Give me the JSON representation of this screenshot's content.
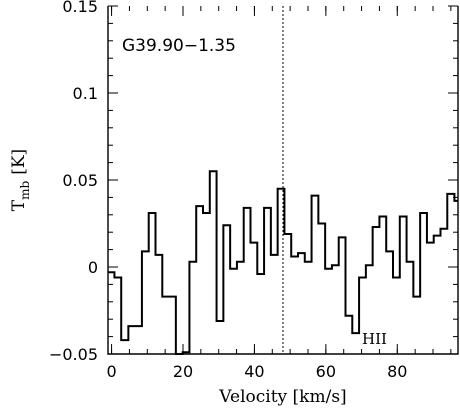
{
  "chart_data": {
    "type": "line",
    "style": "step",
    "source_label": "G39.90−1.35",
    "annotation": "HII",
    "xlabel": "Velocity [km/s]",
    "ylabel_main": "T",
    "ylabel_sub": "mb",
    "ylabel_unit": "[K]",
    "xlim": [
      -1,
      97
    ],
    "ylim": [
      -0.05,
      0.15
    ],
    "xticks_major": [
      0,
      20,
      40,
      60,
      80
    ],
    "xtick_labels": [
      "0",
      "20",
      "40",
      "60",
      "80"
    ],
    "yticks_major": [
      -0.05,
      0,
      0.05,
      0.1,
      0.15
    ],
    "ytick_labels": [
      "−0.05",
      "0",
      "0.05",
      "0.1",
      "0.15"
    ],
    "reference_line_x": 48,
    "grid": false,
    "x": [
      -1.0,
      0.8,
      2.7,
      4.7,
      6.6,
      8.5,
      10.4,
      12.3,
      14.2,
      16.1,
      18.0,
      19.9,
      21.8,
      23.7,
      25.6,
      27.5,
      29.4,
      31.3,
      33.2,
      35.1,
      37.0,
      38.9,
      40.8,
      42.7,
      44.6,
      46.5,
      48.4,
      50.3,
      52.2,
      54.1,
      56.0,
      57.9,
      59.8,
      61.7,
      63.6,
      65.5,
      67.4,
      69.3,
      71.2,
      73.1,
      75.0,
      76.9,
      78.8,
      80.7,
      82.6,
      84.5,
      86.4,
      88.3,
      90.2,
      92.1,
      94.0,
      96.0
    ],
    "y": [
      -0.003,
      -0.006,
      -0.042,
      -0.034,
      -0.034,
      0.009,
      0.031,
      0.007,
      -0.017,
      -0.017,
      -0.054,
      -0.049,
      0.003,
      0.035,
      0.031,
      0.055,
      -0.031,
      0.024,
      -0.001,
      0.003,
      0.034,
      0.014,
      -0.004,
      0.034,
      0.007,
      0.045,
      0.019,
      0.006,
      0.008,
      0.003,
      0.041,
      0.025,
      -0.001,
      0.001,
      0.017,
      -0.028,
      -0.038,
      -0.006,
      0.001,
      0.023,
      0.029,
      0.009,
      -0.006,
      0.029,
      0.003,
      -0.017,
      0.031,
      0.014,
      0.018,
      0.022,
      0.042,
      0.038
    ]
  }
}
